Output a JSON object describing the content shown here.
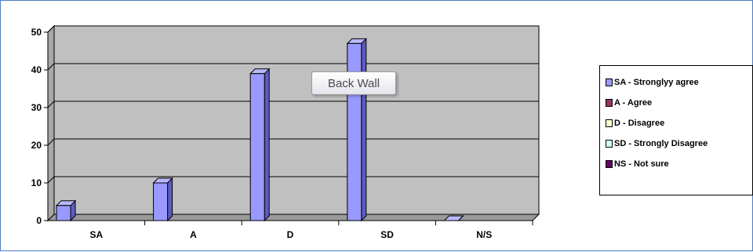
{
  "chart_data": {
    "type": "bar",
    "categories": [
      "SA",
      "A",
      "D",
      "SD",
      "N/S"
    ],
    "values": [
      4,
      10,
      39,
      47,
      0
    ],
    "ylim": [
      0,
      50
    ],
    "yticks": [
      "0",
      "10",
      "20",
      "30",
      "40",
      "50"
    ],
    "grid": true,
    "legend_position": "right",
    "legend": [
      {
        "label": "SA - Stronglyy agree",
        "color": "#9999ff"
      },
      {
        "label": "A - Agree",
        "color": "#993366"
      },
      {
        "label": "D - Disagree",
        "color": "#ffffcc"
      },
      {
        "label": "SD - Strongly Disagree",
        "color": "#ccffff"
      },
      {
        "label": "NS - Not sure",
        "color": "#660066"
      }
    ],
    "bar_color": "#9999ff",
    "plot_background": "#c0c0c0",
    "tooltip": "Back Wall"
  }
}
